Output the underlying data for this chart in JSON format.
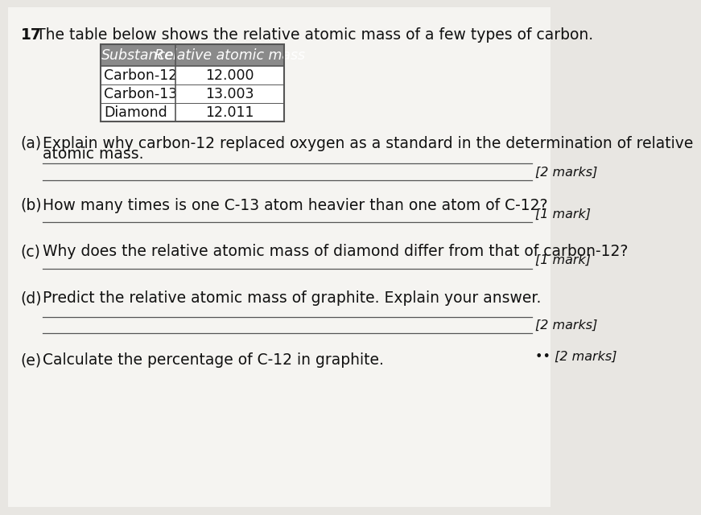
{
  "question_number": "17",
  "intro_text": "The table below shows the relative atomic mass of a few types of carbon.",
  "table_header": [
    "Substance",
    "Relative atomic mass"
  ],
  "table_rows": [
    [
      "Carbon-12",
      "12.000"
    ],
    [
      "Carbon-13",
      "13.003"
    ],
    [
      "Diamond",
      "12.011"
    ]
  ],
  "questions": [
    {
      "label": "(a)",
      "text": "Explain why carbon-12 replaced oxygen as a standard in the determination of relative",
      "text2": "atomic mass.",
      "marks": "[2 marks]",
      "answer_lines": 2
    },
    {
      "label": "(b)",
      "text": "How many times is one C-13 atom heavier than one atom of C-12?",
      "text2": "",
      "marks": "[1 mark]",
      "answer_lines": 1
    },
    {
      "label": "(c)",
      "text": "Why does the relative atomic mass of diamond differ from that of carbon-12?",
      "text2": "",
      "marks": "[1 mark]",
      "answer_lines": 1
    },
    {
      "label": "(d)",
      "text": "Predict the relative atomic mass of graphite. Explain your answer.",
      "text2": "",
      "marks": "[2 marks]",
      "answer_lines": 2
    },
    {
      "label": "(e)",
      "text": "Calculate the percentage of C-12 in graphite.",
      "text2": "",
      "marks": "[2 marks]",
      "answer_lines": 0
    }
  ],
  "bg_color": "#e8e6e2",
  "paper_color": "#f5f4f1",
  "table_header_bg": "#8a8a8a",
  "table_border_color": "#555555",
  "line_color": "#555555",
  "text_color": "#111111",
  "marks_color": "#333333",
  "font_size_main": 13.5,
  "font_size_table": 12.5,
  "font_size_small": 11.5
}
